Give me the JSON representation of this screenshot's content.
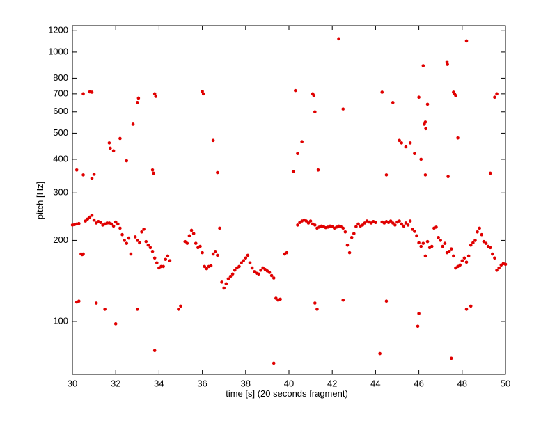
{
  "chart_data": {
    "type": "scatter",
    "xlabel": "time [s] (20 seconds fragment)",
    "ylabel": "pitch [Hz]",
    "color": "#e00000",
    "log_y": true,
    "xlim": [
      30,
      50
    ],
    "ylim": [
      63.6,
      1253
    ],
    "xticks": [
      30,
      32,
      34,
      36,
      38,
      40,
      42,
      44,
      46,
      48,
      50
    ],
    "yticks": [
      100,
      200,
      300,
      400,
      500,
      600,
      700,
      800,
      1000,
      1200
    ],
    "x": [
      30.0,
      30.1,
      30.2,
      30.3,
      30.4,
      30.45,
      30.5,
      30.6,
      30.7,
      30.8,
      30.9,
      31.0,
      31.1,
      31.2,
      31.3,
      31.4,
      31.5,
      31.6,
      31.7,
      31.8,
      31.9,
      32.0,
      32.1,
      32.2,
      32.3,
      32.4,
      32.5,
      32.6,
      32.7,
      32.9,
      33.0,
      33.1,
      33.2,
      33.3,
      33.4,
      33.5,
      33.6,
      33.7,
      33.8,
      33.9,
      34.0,
      34.1,
      34.2,
      34.3,
      34.4,
      34.5,
      35.2,
      35.3,
      35.4,
      35.5,
      35.6,
      35.7,
      35.8,
      35.9,
      36.0,
      36.1,
      36.2,
      36.3,
      36.4,
      36.5,
      36.6,
      36.7,
      36.8,
      36.9,
      37.0,
      37.1,
      37.2,
      37.3,
      37.4,
      37.5,
      37.6,
      37.7,
      37.8,
      37.9,
      38.0,
      38.1,
      38.2,
      38.3,
      38.4,
      38.5,
      38.6,
      38.7,
      38.8,
      38.9,
      39.0,
      39.1,
      39.2,
      39.3,
      39.4,
      39.5,
      39.6,
      39.8,
      39.9,
      40.4,
      40.5,
      40.6,
      40.7,
      40.8,
      40.9,
      41.0,
      41.1,
      41.2,
      41.3,
      41.4,
      41.5,
      41.6,
      41.7,
      41.8,
      41.9,
      42.0,
      42.1,
      42.2,
      42.3,
      42.4,
      42.5,
      42.6,
      42.7,
      42.8,
      42.9,
      43.0,
      43.1,
      43.2,
      43.3,
      43.4,
      43.5,
      43.6,
      43.7,
      43.8,
      43.9,
      44.0,
      44.3,
      44.4,
      44.5,
      44.6,
      44.7,
      44.8,
      44.9,
      45.0,
      45.1,
      45.2,
      45.3,
      45.4,
      45.5,
      45.6,
      45.7,
      45.8,
      45.9,
      46.0,
      46.1,
      46.2,
      46.3,
      46.4,
      46.5,
      46.6,
      46.7,
      46.8,
      46.9,
      47.0,
      47.1,
      47.2,
      47.3,
      47.4,
      47.5,
      47.6,
      47.7,
      47.8,
      47.9,
      48.0,
      48.1,
      48.2,
      48.3,
      48.4,
      48.5,
      48.6,
      48.7,
      48.8,
      48.9,
      49.0,
      49.1,
      49.2,
      49.3,
      49.4,
      49.5,
      49.6,
      49.7,
      49.8,
      49.9,
      50.0,
      30.2,
      30.3,
      31.1,
      31.5,
      32.0,
      33.0,
      33.8,
      34.9,
      35.0,
      39.3,
      41.2,
      41.3,
      42.5,
      44.2,
      44.5,
      45.95,
      46.0,
      47.5,
      48.2,
      48.4,
      30.5,
      30.8,
      30.9,
      30.2,
      30.5,
      30.9,
      31.0,
      31.7,
      31.75,
      31.9,
      32.2,
      32.5,
      32.8,
      33.0,
      33.05,
      33.7,
      33.75,
      33.8,
      33.85,
      36.0,
      36.05,
      36.5,
      36.7,
      40.2,
      40.3,
      40.4,
      40.6,
      41.1,
      41.15,
      41.2,
      41.35,
      42.3,
      42.5,
      44.3,
      44.5,
      44.8,
      45.1,
      45.2,
      45.4,
      45.6,
      45.8,
      46.0,
      46.2,
      46.25,
      46.3,
      46.32,
      46.4,
      46.1,
      46.3,
      47.3,
      47.32,
      47.35,
      47.6,
      47.65,
      47.7,
      47.8,
      48.2,
      49.3,
      49.5,
      49.6
    ],
    "values": [
      228,
      229,
      230,
      231,
      178,
      177,
      178,
      236,
      240,
      244,
      248,
      238,
      232,
      235,
      233,
      228,
      230,
      232,
      232,
      230,
      226,
      234,
      230,
      222,
      210,
      200,
      195,
      204,
      178,
      206,
      200,
      196,
      215,
      220,
      198,
      192,
      188,
      182,
      172,
      165,
      158,
      160,
      160,
      170,
      175,
      168,
      198,
      195,
      208,
      218,
      212,
      195,
      188,
      190,
      180,
      160,
      157,
      160,
      161,
      178,
      182,
      176,
      222,
      140,
      133,
      138,
      144,
      147,
      150,
      155,
      158,
      160,
      165,
      168,
      172,
      176,
      165,
      158,
      153,
      151,
      150,
      155,
      158,
      156,
      154,
      152,
      148,
      145,
      122,
      120,
      121,
      178,
      180,
      228,
      233,
      236,
      238,
      236,
      232,
      236,
      230,
      228,
      222,
      224,
      226,
      225,
      223,
      224,
      226,
      225,
      222,
      224,
      226,
      225,
      222,
      215,
      192,
      180,
      205,
      212,
      225,
      230,
      226,
      228,
      232,
      236,
      234,
      232,
      235,
      233,
      234,
      232,
      235,
      233,
      236,
      232,
      228,
      234,
      236,
      230,
      226,
      232,
      228,
      236,
      220,
      216,
      208,
      196,
      190,
      195,
      175,
      198,
      188,
      190,
      222,
      224,
      205,
      200,
      190,
      195,
      180,
      182,
      186,
      175,
      158,
      160,
      162,
      168,
      172,
      166,
      175,
      192,
      196,
      200,
      215,
      222,
      210,
      198,
      195,
      190,
      188,
      178,
      172,
      155,
      158,
      162,
      164,
      163,
      118,
      119,
      117,
      111,
      98,
      111,
      78,
      111,
      114,
      70,
      117,
      111,
      120,
      76,
      119,
      96,
      107,
      73,
      111,
      114,
      700,
      712,
      710,
      365,
      350,
      340,
      352,
      460,
      440,
      430,
      478,
      395,
      540,
      650,
      675,
      365,
      355,
      700,
      685,
      715,
      700,
      470,
      357,
      360,
      720,
      420,
      465,
      700,
      690,
      600,
      365,
      1120,
      615,
      710,
      350,
      650,
      470,
      460,
      445,
      460,
      420,
      680,
      890,
      540,
      550,
      520,
      640,
      400,
      350,
      920,
      900,
      345,
      710,
      700,
      690,
      480,
      1100,
      355,
      680,
      700
    ]
  }
}
